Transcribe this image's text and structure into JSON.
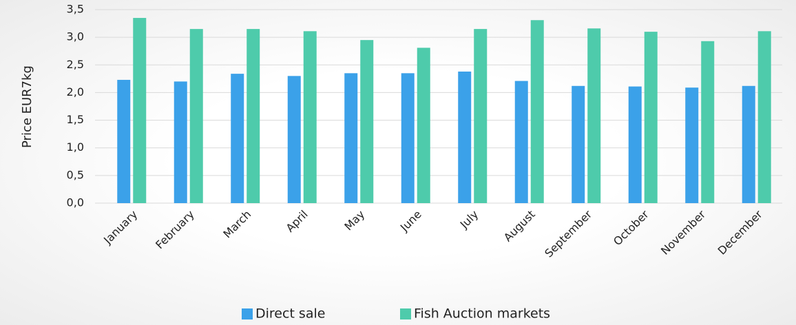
{
  "chart_data": {
    "type": "bar",
    "y_label": "Price EUR7kg",
    "categories": [
      "January",
      "February",
      "March",
      "April",
      "May",
      "June",
      "July",
      "August",
      "September",
      "October",
      "November",
      "December"
    ],
    "series": [
      {
        "name": "Direct sale",
        "color": "#3ba1e9",
        "values": [
          2.23,
          2.2,
          2.34,
          2.3,
          2.35,
          2.35,
          2.38,
          2.21,
          2.12,
          2.11,
          2.09,
          2.12
        ]
      },
      {
        "name": "Fish Auction markets",
        "color": "#4ecbab",
        "values": [
          3.35,
          3.15,
          3.15,
          3.11,
          2.95,
          2.81,
          3.15,
          3.31,
          3.16,
          3.1,
          2.93,
          3.11
        ]
      }
    ],
    "ylim": [
      0,
      3.5
    ],
    "yticks": [
      {
        "value": 0,
        "label": "0,0"
      },
      {
        "value": 0.5,
        "label": "0,5"
      },
      {
        "value": 1,
        "label": "1,0"
      },
      {
        "value": 1.5,
        "label": "1,5"
      },
      {
        "value": 2,
        "label": "2,0"
      },
      {
        "value": 2.5,
        "label": "2,5"
      },
      {
        "value": 3,
        "label": "3,0"
      },
      {
        "value": 3.5,
        "label": "3,5"
      }
    ],
    "grid": true,
    "legend": "bottom"
  }
}
